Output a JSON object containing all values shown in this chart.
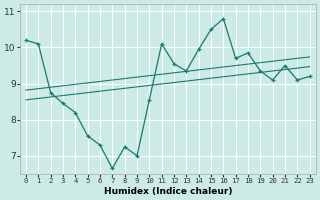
{
  "line1_x": [
    0,
    1,
    2,
    3,
    4,
    5,
    6,
    7,
    8,
    9,
    10,
    11,
    12,
    13,
    14,
    15,
    16,
    17,
    18,
    19,
    20,
    21,
    22,
    23
  ],
  "line1_y": [
    10.2,
    10.1,
    8.75,
    8.45,
    8.2,
    7.55,
    7.3,
    6.65,
    7.25,
    7.0,
    8.55,
    10.1,
    9.55,
    9.35,
    9.95,
    10.5,
    10.8,
    9.7,
    9.85,
    9.35,
    9.1,
    9.5,
    9.1,
    9.2
  ],
  "line2_x": [
    0,
    1,
    2,
    3,
    4,
    5,
    6,
    7,
    8,
    9,
    10,
    11,
    12,
    13,
    14,
    15,
    16,
    17,
    18,
    19,
    20,
    21,
    22,
    23
  ],
  "line2_y": [
    8.82,
    8.86,
    8.9,
    8.94,
    8.98,
    9.02,
    9.06,
    9.1,
    9.14,
    9.18,
    9.22,
    9.26,
    9.3,
    9.34,
    9.38,
    9.42,
    9.46,
    9.5,
    9.54,
    9.58,
    9.62,
    9.66,
    9.7,
    9.74
  ],
  "line3_x": [
    0,
    1,
    2,
    3,
    4,
    5,
    6,
    7,
    8,
    9,
    10,
    11,
    12,
    13,
    14,
    15,
    16,
    17,
    18,
    19,
    20,
    21,
    22,
    23
  ],
  "line3_y": [
    8.55,
    8.59,
    8.63,
    8.67,
    8.71,
    8.75,
    8.79,
    8.83,
    8.87,
    8.91,
    8.95,
    8.99,
    9.03,
    9.07,
    9.11,
    9.15,
    9.19,
    9.23,
    9.27,
    9.31,
    9.35,
    9.39,
    9.43,
    9.47
  ],
  "color": "#1a7a6e",
  "bg_color": "#cceae6",
  "grid_color": "#ffffff",
  "xlabel": "Humidex (Indice chaleur)",
  "xlim": [
    -0.5,
    23.5
  ],
  "ylim": [
    6.5,
    11.2
  ],
  "yticks": [
    7,
    8,
    9,
    10,
    11
  ],
  "xticks": [
    0,
    1,
    2,
    3,
    4,
    5,
    6,
    7,
    8,
    9,
    10,
    11,
    12,
    13,
    14,
    15,
    16,
    17,
    18,
    19,
    20,
    21,
    22,
    23
  ],
  "xtick_labels": [
    "0",
    "1",
    "2",
    "3",
    "4",
    "5",
    "6",
    "7",
    "8",
    "9",
    "10",
    "11",
    "12",
    "13",
    "14",
    "15",
    "16",
    "17",
    "18",
    "19",
    "20",
    "21",
    "22",
    "23"
  ]
}
